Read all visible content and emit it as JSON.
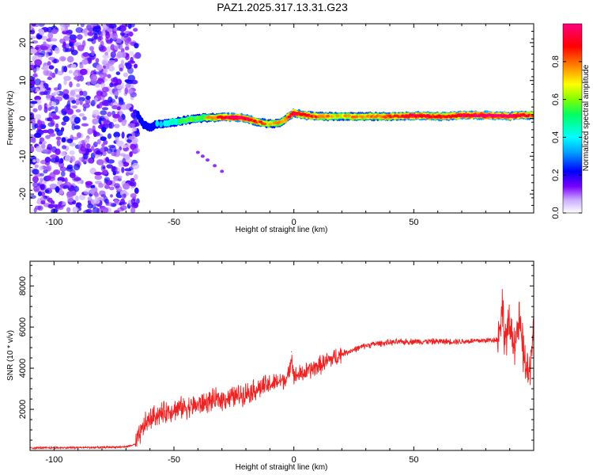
{
  "title": "PAZ1.2025.317.13.31.G23",
  "chart_data": [
    {
      "type": "heatmap",
      "name": "spectrogram",
      "xlabel": "Height of straight line (km)",
      "ylabel": "Frequency (Hz)",
      "xlim": [
        -110,
        100
      ],
      "ylim": [
        -25,
        25
      ],
      "xticks": [
        -100,
        -50,
        0,
        50
      ],
      "yticks": [
        -20,
        -10,
        0,
        10,
        20
      ],
      "colorbar": {
        "label": "Normalized spectral amplitude",
        "range": [
          0,
          1
        ],
        "ticks": [
          0.0,
          0.2,
          0.4,
          0.6,
          0.8
        ],
        "colormap": [
          "#ffffff",
          "#c9a9ff",
          "#7a00ff",
          "#0000ff",
          "#00a0ff",
          "#00ffff",
          "#00ff60",
          "#80ff00",
          "#ffff00",
          "#ff8000",
          "#ff0000",
          "#ff0080"
        ]
      },
      "noise_region_x": [
        -110,
        -65
      ],
      "ridge": {
        "x": [
          -65,
          -63,
          -60,
          -57,
          -55,
          -50,
          -45,
          -40,
          -35,
          -30,
          -25,
          -20,
          -15,
          -10,
          -5,
          -2,
          0,
          5,
          10,
          20,
          30,
          40,
          50,
          60,
          65,
          70,
          80,
          90,
          95,
          100
        ],
        "freq": [
          1.0,
          -1.5,
          -2.5,
          -1.5,
          -1.5,
          -1.0,
          -0.5,
          0.0,
          0.2,
          0.3,
          0.3,
          0.0,
          -1.0,
          -1.5,
          -1.0,
          0.5,
          1.5,
          0.8,
          0.5,
          0.5,
          0.5,
          0.5,
          0.7,
          0.5,
          0.5,
          0.8,
          0.8,
          0.6,
          0.8,
          0.8
        ],
        "amplitude": [
          0.3,
          0.35,
          0.4,
          0.45,
          0.5,
          0.55,
          0.6,
          0.6,
          0.7,
          0.85,
          0.95,
          0.9,
          0.8,
          0.7,
          0.7,
          0.85,
          0.9,
          0.85,
          0.8,
          0.7,
          0.75,
          0.8,
          0.9,
          0.85,
          0.85,
          0.9,
          0.95,
          0.9,
          0.9,
          0.8
        ]
      },
      "tail_points": [
        {
          "x": -40,
          "y": -9
        },
        {
          "x": -38,
          "y": -10
        },
        {
          "x": -36,
          "y": -11
        },
        {
          "x": -33,
          "y": -12.5
        },
        {
          "x": -30,
          "y": -14
        }
      ]
    },
    {
      "type": "line",
      "name": "snr",
      "xlabel": "Height of straight line (km)",
      "ylabel": "SNR (10 * v/v)",
      "xlim": [
        -110,
        100
      ],
      "ylim": [
        0,
        9200
      ],
      "xticks": [
        -100,
        -50,
        0,
        50
      ],
      "yticks": [
        2000,
        4000,
        6000,
        8000
      ],
      "color": "#ee2222",
      "series": [
        {
          "name": "SNR",
          "x": [
            -110,
            -100,
            -90,
            -80,
            -70,
            -66,
            -64,
            -62,
            -60,
            -58,
            -55,
            -50,
            -45,
            -40,
            -35,
            -30,
            -25,
            -20,
            -15,
            -10,
            -5,
            -2,
            -1,
            0,
            5,
            10,
            15,
            20,
            25,
            30,
            35,
            40,
            50,
            60,
            70,
            80,
            85,
            87,
            88,
            90,
            92,
            94,
            96,
            98,
            100
          ],
          "y": [
            120,
            130,
            140,
            150,
            180,
            300,
            800,
            1300,
            1500,
            1700,
            1800,
            2000,
            2100,
            2200,
            2400,
            2500,
            2600,
            2800,
            3000,
            3200,
            3400,
            3600,
            4800,
            3600,
            3800,
            4100,
            4400,
            4700,
            4900,
            5100,
            5200,
            5250,
            5300,
            5300,
            5300,
            5350,
            5400,
            7000,
            5400,
            6000,
            5300,
            6200,
            4500,
            3500,
            6200
          ]
        }
      ]
    }
  ]
}
